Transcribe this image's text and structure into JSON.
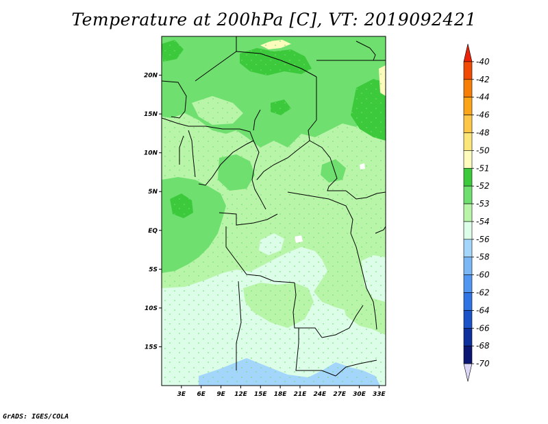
{
  "title": "Temperature at 200hPa [C], VT: 2019092421",
  "credit": "GrADS: IGES/COLA",
  "chart_data": {
    "type": "heatmap",
    "title": "Temperature at 200hPa [C], VT: 2019092421",
    "units": "C",
    "x_axis": {
      "labels": [
        "3E",
        "6E",
        "9E",
        "12E",
        "15E",
        "18E",
        "21E",
        "24E",
        "27E",
        "30E",
        "33E"
      ],
      "range": [
        0,
        34
      ]
    },
    "y_axis": {
      "labels": [
        "20N",
        "15N",
        "10N",
        "5N",
        "EQ",
        "5S",
        "10S",
        "15S"
      ],
      "range": [
        -20,
        25
      ]
    },
    "colorbar": {
      "levels": [
        "-40",
        "-42",
        "-44",
        "-46",
        "-48",
        "-50",
        "-51",
        "-52",
        "-53",
        "-54",
        "-56",
        "-58",
        "-60",
        "-62",
        "-64",
        "-66",
        "-68",
        "-70"
      ],
      "colors": [
        "#e8230a",
        "#f04a05",
        "#f77e06",
        "#fba418",
        "#fdc647",
        "#fde679",
        "#fdfcbd",
        "#3cc93c",
        "#6fe06f",
        "#b9f5a9",
        "#dcfde8",
        "#a4d6fb",
        "#7bb7f5",
        "#5196f0",
        "#3074e3",
        "#1a52c8",
        "#0e309c",
        "#0c1673",
        "#dcd7f6"
      ]
    },
    "field_regions": [
      {
        "value_range": "-53 to -52",
        "level_color": "#6fe06f",
        "area": "northern Sahara and Sahel band, Gulf of Guinea coast"
      },
      {
        "value_range": "-52 to -51",
        "level_color": "#3cc93c",
        "area": "northeast near 30E-33E, 10N-17N; near 20N 22E-25E"
      },
      {
        "value_range": "-51 to -50",
        "level_color": "#fdfcbd",
        "area": "small patches near 25N 16E and 33E 20N"
      },
      {
        "value_range": "-54 to -53",
        "level_color": "#b9f5a9",
        "area": "central Africa, equator to 15N"
      },
      {
        "value_range": "-56 to -54",
        "level_color": "#dcfde8",
        "area": "southern Africa south of 7S"
      },
      {
        "value_range": "-58 to -56",
        "level_color": "#a4d6fb",
        "area": "far south near 18S-20S"
      }
    ]
  }
}
